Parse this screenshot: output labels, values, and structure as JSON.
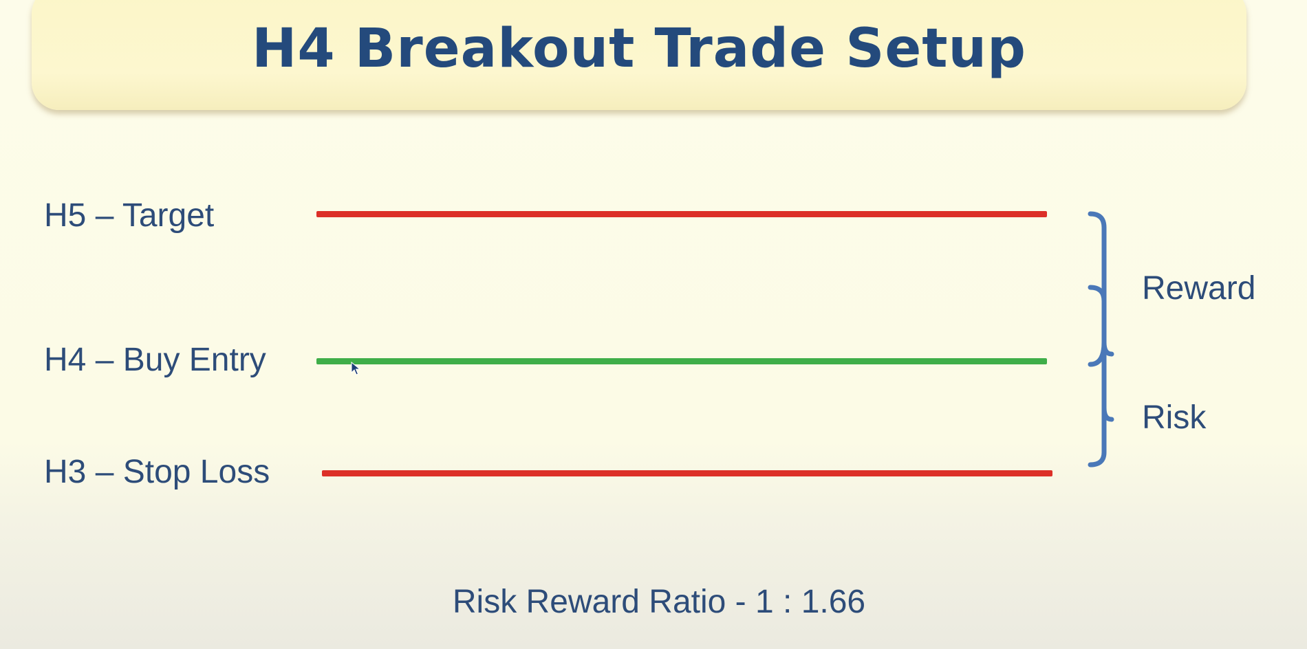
{
  "title": "H4 Breakout Trade Setup",
  "levels": {
    "target": {
      "label": "H5 – Target",
      "color": "#dc3028"
    },
    "entry": {
      "label": "H4 – Buy Entry",
      "color": "#3fae49"
    },
    "stop": {
      "label": "H3 – Stop Loss",
      "color": "#dc3028"
    }
  },
  "brackets": {
    "reward": "Reward",
    "risk": "Risk"
  },
  "ratio": "Risk Reward Ratio - 1 : 1.66",
  "icons": {
    "bracket": "curly-brace-icon",
    "cursor": "mouse-pointer-icon"
  },
  "colors": {
    "title": "#244a7c",
    "text": "#2d4c79",
    "bracket": "#4a78b8"
  }
}
